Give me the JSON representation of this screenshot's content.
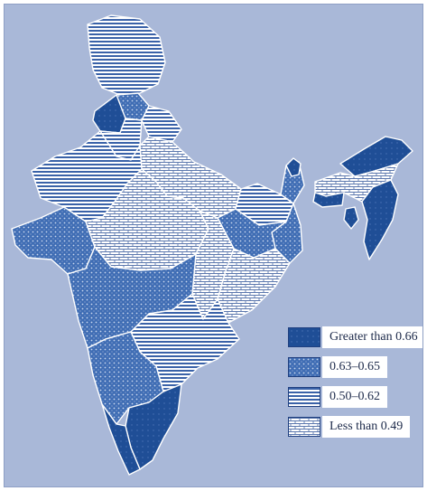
{
  "legend": {
    "items": [
      {
        "label": "Greater than 0.66",
        "pattern": "solid-dark",
        "color": "#1f4e96"
      },
      {
        "label": "0.63–0.65",
        "pattern": "dots",
        "color": "#3f6db4"
      },
      {
        "label": "0.50–0.62",
        "pattern": "horizontal-stripes",
        "color": "#3a62a8"
      },
      {
        "label": "Less than 0.49",
        "pattern": "brick",
        "color": "#5c78ae"
      }
    ]
  },
  "colors": {
    "background": "#a9b8d8",
    "boundary": "#ffffff",
    "outline": "#1f3f7f"
  }
}
